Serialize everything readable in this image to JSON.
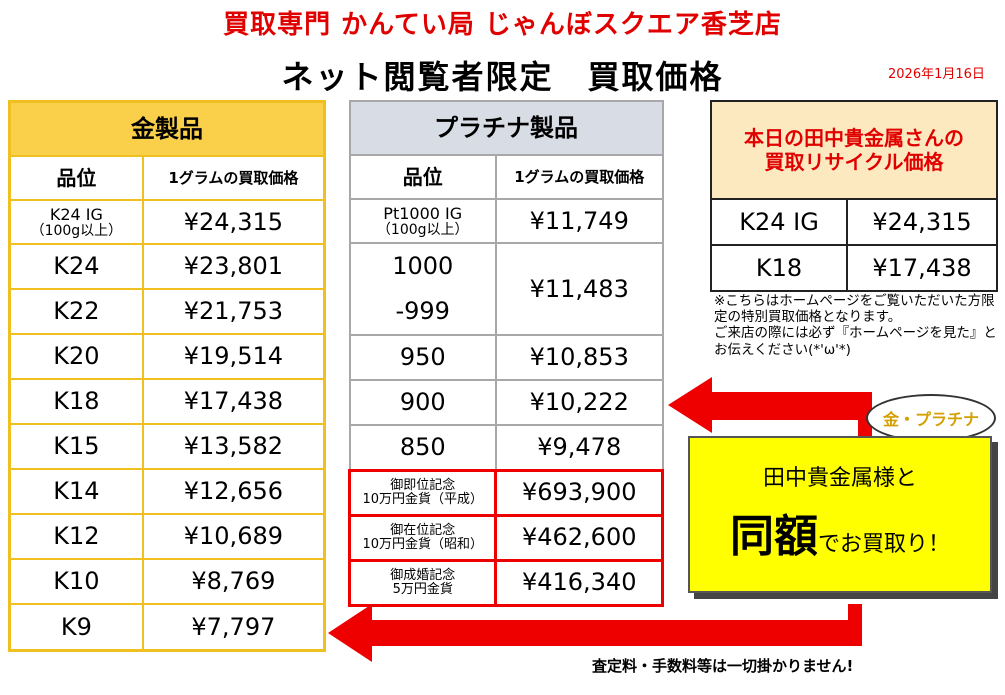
{
  "header": {
    "store_name": "買取専門 かんてい局 じゃんぼスクエア香芝店",
    "title": "ネット閲覧者限定　買取価格",
    "date": "2026年1月16日"
  },
  "gold": {
    "header": "金製品",
    "col_grade": "品位",
    "col_price": "1グラムの買取価格",
    "rows": [
      {
        "grade": "K24 IG",
        "sub": "（100g以上）",
        "price": "¥24,315"
      },
      {
        "grade": "K24",
        "price": "¥23,801"
      },
      {
        "grade": "K22",
        "price": "¥21,753"
      },
      {
        "grade": "K20",
        "price": "¥19,514"
      },
      {
        "grade": "K18",
        "price": "¥17,438"
      },
      {
        "grade": "K15",
        "price": "¥13,582"
      },
      {
        "grade": "K14",
        "price": "¥12,656"
      },
      {
        "grade": "K12",
        "price": "¥10,689"
      },
      {
        "grade": "K10",
        "price": "¥8,769"
      },
      {
        "grade": "K9",
        "price": "¥7,797"
      }
    ]
  },
  "platinum": {
    "header": "プラチナ製品",
    "col_grade": "品位",
    "col_price": "1グラムの買取価格",
    "rows": [
      {
        "grade": "Pt1000 IG",
        "sub": "（100g以上）",
        "price": "¥11,749"
      },
      {
        "grade": "1000",
        "grade2": "-999",
        "price": "¥11,483"
      },
      {
        "grade": "950",
        "price": "¥10,853"
      },
      {
        "grade": "900",
        "price": "¥10,222"
      },
      {
        "grade": "850",
        "price": "¥9,478"
      }
    ],
    "coins": [
      {
        "name1": "御即位記念",
        "name2": "10万円金貨（平成）",
        "price": "¥693,900"
      },
      {
        "name1": "御在位記念",
        "name2": "10万円金貨（昭和）",
        "price": "¥462,600"
      },
      {
        "name1": "御成婚記念",
        "name2": "5万円金貨",
        "price": "¥416,340"
      }
    ]
  },
  "recycle": {
    "heading_line1": "本日の田中貴金属さんの",
    "heading_line2": "買取リサイクル価格",
    "rows": [
      {
        "grade": "K24 IG",
        "price": "¥24,315"
      },
      {
        "grade": "K18",
        "price": "¥17,438"
      }
    ]
  },
  "note": {
    "line1": "※こちらはホームページをご覧いただいた方限定の特別買取価格となります。",
    "line2": "ご来店の際には必ず『ホームページを見た』とお伝えください(*'ω'*)"
  },
  "bubble": {
    "text": "金・プラチナ"
  },
  "promo": {
    "line1": "田中貴金属様と",
    "big": "同額",
    "rest": "でお買取り！"
  },
  "footer": {
    "note": "査定料・手数料等は一切掛かりません!"
  },
  "colors": {
    "accent_red": "#e00000",
    "gold": "#f0c020",
    "gold_header": "#fad04a",
    "platinum_header": "#d8dce4",
    "promo": "#ffff00"
  },
  "icons": {
    "arrow_left_upper": "arrow-left-icon",
    "arrow_left_lower": "arrow-left-icon"
  }
}
